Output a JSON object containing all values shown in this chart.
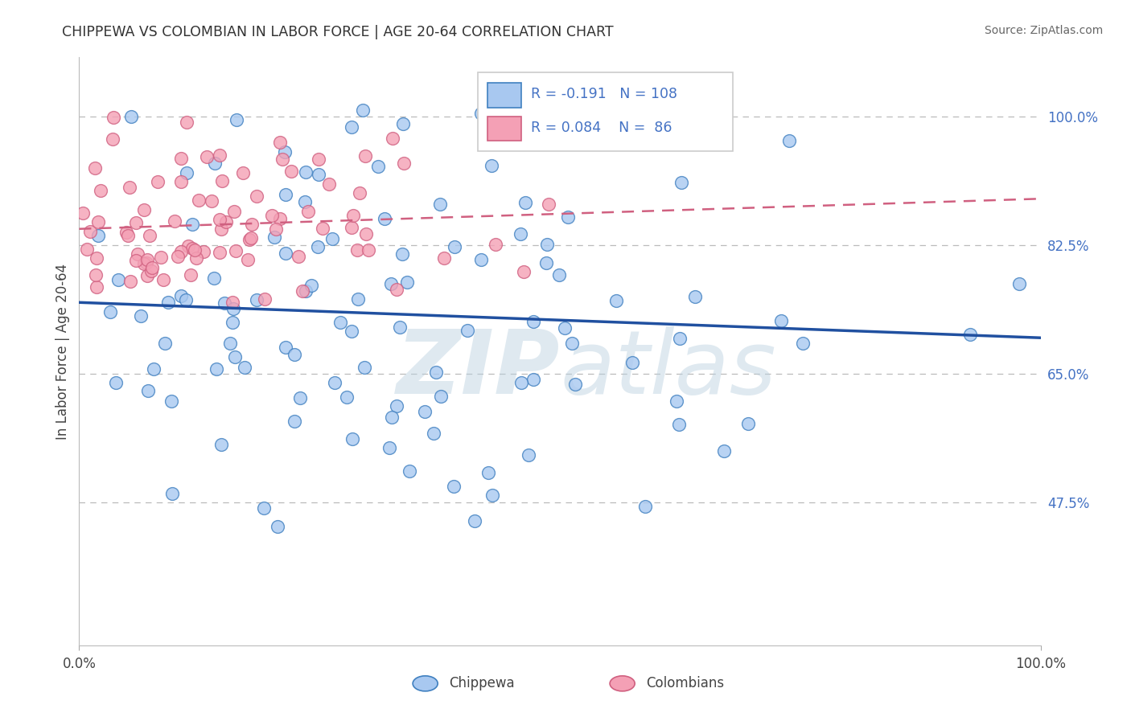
{
  "title": "CHIPPEWA VS COLOMBIAN IN LABOR FORCE | AGE 20-64 CORRELATION CHART",
  "source": "Source: ZipAtlas.com",
  "ylabel": "In Labor Force | Age 20-64",
  "legend_blue_label": "Chippewa",
  "legend_pink_label": "Colombians",
  "R_blue": "-0.191",
  "N_blue": "108",
  "R_pink": "0.084",
  "N_pink": "86",
  "blue_face_color": "#A8C8F0",
  "blue_edge_color": "#4080C0",
  "pink_face_color": "#F4A0B5",
  "pink_edge_color": "#D06080",
  "blue_line_color": "#2050A0",
  "pink_line_color": "#D06080",
  "background_color": "#FFFFFF",
  "xlim": [
    0.0,
    1.0
  ],
  "ylim": [
    0.28,
    1.08
  ],
  "y_ticks": [
    0.475,
    0.65,
    0.825,
    1.0
  ],
  "y_tick_labels": [
    "47.5%",
    "65.0%",
    "82.5%",
    "100.0%"
  ],
  "x_ticks": [
    0.0,
    1.0
  ],
  "x_tick_labels": [
    "0.0%",
    "100.0%"
  ]
}
